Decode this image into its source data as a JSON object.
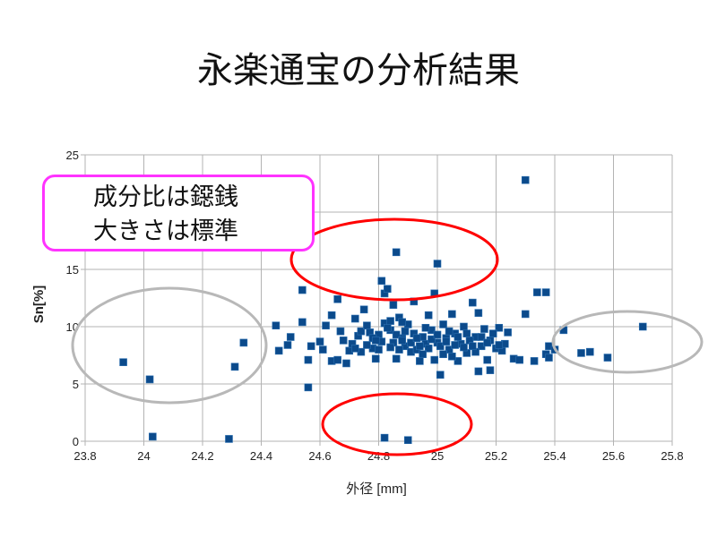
{
  "slide": {
    "title": "永楽通宝の分析結果"
  },
  "annotation": {
    "lines": [
      "成分比は鐚銭",
      "大きさは標準"
    ]
  },
  "colors": {
    "marker": "#0b4a8b",
    "highlight_red": "#ff0000",
    "highlight_gray": "#b8b8b8",
    "callout": "#ff33ff",
    "grid": "#b3b3b3"
  },
  "chart_data": {
    "type": "scatter",
    "title": "",
    "xlabel": "外径 [mm]",
    "ylabel": "Sn[%]",
    "xlim": [
      23.8,
      25.8
    ],
    "ylim": [
      0,
      25
    ],
    "xticks": [
      "23.8",
      "24",
      "24.2",
      "24.4",
      "24.6",
      "24.8",
      "25",
      "25.2",
      "25.4",
      "25.6",
      "25.8"
    ],
    "yticks": [
      "0",
      "5",
      "10",
      "15",
      "20",
      "25"
    ],
    "grid": true,
    "legend": "none",
    "points": [
      [
        23.93,
        6.9
      ],
      [
        24.02,
        5.4
      ],
      [
        24.03,
        0.4
      ],
      [
        24.29,
        0.2
      ],
      [
        24.31,
        6.5
      ],
      [
        24.34,
        8.6
      ],
      [
        24.45,
        10.1
      ],
      [
        24.46,
        7.9
      ],
      [
        24.49,
        8.4
      ],
      [
        24.5,
        9.1
      ],
      [
        24.54,
        13.2
      ],
      [
        24.54,
        10.4
      ],
      [
        24.56,
        7.1
      ],
      [
        24.57,
        8.3
      ],
      [
        24.56,
        4.7
      ],
      [
        24.6,
        8.7
      ],
      [
        24.61,
        8.0
      ],
      [
        24.62,
        10.1
      ],
      [
        24.64,
        11.0
      ],
      [
        24.64,
        7.0
      ],
      [
        24.66,
        7.1
      ],
      [
        24.66,
        12.4
      ],
      [
        24.67,
        9.6
      ],
      [
        24.68,
        8.8
      ],
      [
        24.69,
        6.8
      ],
      [
        24.7,
        7.9
      ],
      [
        24.71,
        8.5
      ],
      [
        24.72,
        10.7
      ],
      [
        24.73,
        9.2
      ],
      [
        24.74,
        7.8
      ],
      [
        24.75,
        11.5
      ],
      [
        24.77,
        9.5
      ],
      [
        24.78,
        8.1
      ],
      [
        24.79,
        7.2
      ],
      [
        24.8,
        9.3
      ],
      [
        24.81,
        14.0
      ],
      [
        24.82,
        12.9
      ],
      [
        24.83,
        13.3
      ],
      [
        24.82,
        10.3
      ],
      [
        24.82,
        0.3
      ],
      [
        24.84,
        9.7
      ],
      [
        24.85,
        11.9
      ],
      [
        24.85,
        8.6
      ],
      [
        24.86,
        16.5
      ],
      [
        24.86,
        7.2
      ],
      [
        24.87,
        10.8
      ],
      [
        24.88,
        9.0
      ],
      [
        24.89,
        8.3
      ],
      [
        24.9,
        10.2
      ],
      [
        24.9,
        0.1
      ],
      [
        24.91,
        7.8
      ],
      [
        24.92,
        12.2
      ],
      [
        24.92,
        9.4
      ],
      [
        24.93,
        8.0
      ],
      [
        24.94,
        7.0
      ],
      [
        24.95,
        9.1
      ],
      [
        24.96,
        8.5
      ],
      [
        24.97,
        11.0
      ],
      [
        24.98,
        9.7
      ],
      [
        24.99,
        12.9
      ],
      [
        24.99,
        7.1
      ],
      [
        25.0,
        15.5
      ],
      [
        25.0,
        8.6
      ],
      [
        25.01,
        5.8
      ],
      [
        25.02,
        10.2
      ],
      [
        25.03,
        9.0
      ],
      [
        25.04,
        8.0
      ],
      [
        25.05,
        11.1
      ],
      [
        25.06,
        9.4
      ],
      [
        25.07,
        7.0
      ],
      [
        25.08,
        8.5
      ],
      [
        25.09,
        10.0
      ],
      [
        25.1,
        7.7
      ],
      [
        25.12,
        12.1
      ],
      [
        25.13,
        9.1
      ],
      [
        25.14,
        11.2
      ],
      [
        25.14,
        6.1
      ],
      [
        25.15,
        8.3
      ],
      [
        25.16,
        9.8
      ],
      [
        25.17,
        7.1
      ],
      [
        25.18,
        6.2
      ],
      [
        25.18,
        8.8
      ],
      [
        25.2,
        8.1
      ],
      [
        25.21,
        9.9
      ],
      [
        25.22,
        7.9
      ],
      [
        25.23,
        8.5
      ],
      [
        25.24,
        9.5
      ],
      [
        25.26,
        7.2
      ],
      [
        25.28,
        7.1
      ],
      [
        25.3,
        22.8
      ],
      [
        25.3,
        11.1
      ],
      [
        25.33,
        7.0
      ],
      [
        25.34,
        13.0
      ],
      [
        25.37,
        13.0
      ],
      [
        25.37,
        7.6
      ],
      [
        25.38,
        8.3
      ],
      [
        25.38,
        7.3
      ],
      [
        25.4,
        8.0
      ],
      [
        25.43,
        9.7
      ],
      [
        25.49,
        7.7
      ],
      [
        25.52,
        7.8
      ],
      [
        25.58,
        7.3
      ],
      [
        25.7,
        10.0
      ],
      [
        24.76,
        8.4
      ],
      [
        24.78,
        9.0
      ],
      [
        24.8,
        8.0
      ],
      [
        24.81,
        8.7
      ],
      [
        24.83,
        9.9
      ],
      [
        24.84,
        8.2
      ],
      [
        24.86,
        9.3
      ],
      [
        24.87,
        8.0
      ],
      [
        24.88,
        10.4
      ],
      [
        24.89,
        9.6
      ],
      [
        24.91,
        8.6
      ],
      [
        24.93,
        9.0
      ],
      [
        24.94,
        8.3
      ],
      [
        24.96,
        9.9
      ],
      [
        24.97,
        8.1
      ],
      [
        24.98,
        8.9
      ],
      [
        25.0,
        9.3
      ],
      [
        25.01,
        8.3
      ],
      [
        25.02,
        7.6
      ],
      [
        25.03,
        8.7
      ],
      [
        25.04,
        9.6
      ],
      [
        25.06,
        8.4
      ],
      [
        25.07,
        9.1
      ],
      [
        25.09,
        8.2
      ],
      [
        25.1,
        9.4
      ],
      [
        25.11,
        8.8
      ],
      [
        25.13,
        7.8
      ],
      [
        25.15,
        9.1
      ],
      [
        25.17,
        8.6
      ],
      [
        25.19,
        9.4
      ],
      [
        24.72,
        8.1
      ],
      [
        24.74,
        9.6
      ],
      [
        24.76,
        10.1
      ],
      [
        24.79,
        8.8
      ],
      [
        24.84,
        10.5
      ],
      [
        24.88,
        8.8
      ],
      [
        24.95,
        7.6
      ],
      [
        25.05,
        7.4
      ],
      [
        25.12,
        8.3
      ],
      [
        25.21,
        8.4
      ]
    ]
  }
}
